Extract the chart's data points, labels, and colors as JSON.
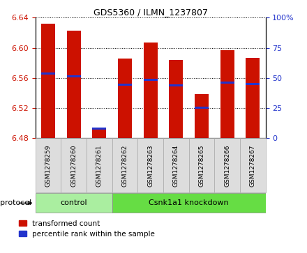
{
  "title": "GDS5360 / ILMN_1237807",
  "samples": [
    "GSM1278259",
    "GSM1278260",
    "GSM1278261",
    "GSM1278262",
    "GSM1278263",
    "GSM1278264",
    "GSM1278265",
    "GSM1278266",
    "GSM1278267"
  ],
  "bar_tops": [
    6.632,
    6.623,
    6.492,
    6.586,
    6.607,
    6.584,
    6.538,
    6.597,
    6.587
  ],
  "bar_base": 6.48,
  "percentile_values": [
    6.566,
    6.562,
    6.492,
    6.551,
    6.557,
    6.55,
    6.52,
    6.554,
    6.552
  ],
  "ylim": [
    6.48,
    6.64
  ],
  "yticks_left": [
    6.48,
    6.52,
    6.56,
    6.6,
    6.64
  ],
  "yticks_right": [
    0,
    25,
    50,
    75,
    100
  ],
  "bar_color": "#cc1100",
  "blue_color": "#2233cc",
  "control_color": "#aaeea0",
  "knockdown_color": "#66dd44",
  "control_indices": [
    0,
    1,
    2
  ],
  "knockdown_indices": [
    3,
    4,
    5,
    6,
    7,
    8
  ],
  "control_label": "control",
  "knockdown_label": "Csnk1a1 knockdown",
  "protocol_label": "protocol",
  "legend_items": [
    "transformed count",
    "percentile rank within the sample"
  ],
  "bar_width": 0.55
}
